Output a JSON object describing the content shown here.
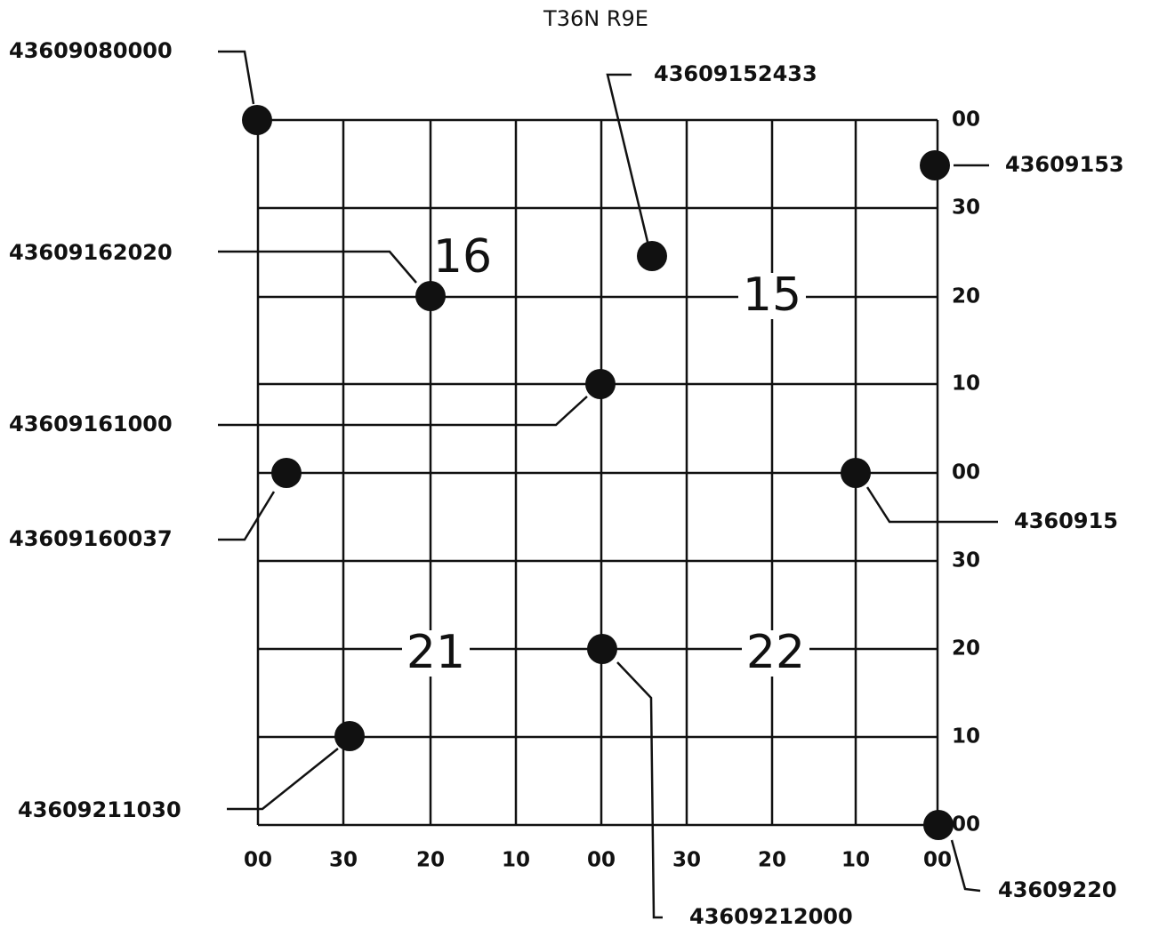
{
  "title": "T36N R9E",
  "right_labels": [
    "00",
    "30",
    "20",
    "10",
    "00",
    "30",
    "20",
    "10",
    "00"
  ],
  "bottom_labels": [
    "00",
    "30",
    "20",
    "10",
    "00",
    "30",
    "20",
    "10",
    "00"
  ],
  "sections": [
    "16",
    "15",
    "21",
    "22"
  ],
  "points": [
    "43609080000",
    "43609152433",
    "43609153",
    "43609162020",
    "43609161000",
    "43609160037",
    "4360915",
    "43609211030",
    "43609212000",
    "43609220"
  ]
}
